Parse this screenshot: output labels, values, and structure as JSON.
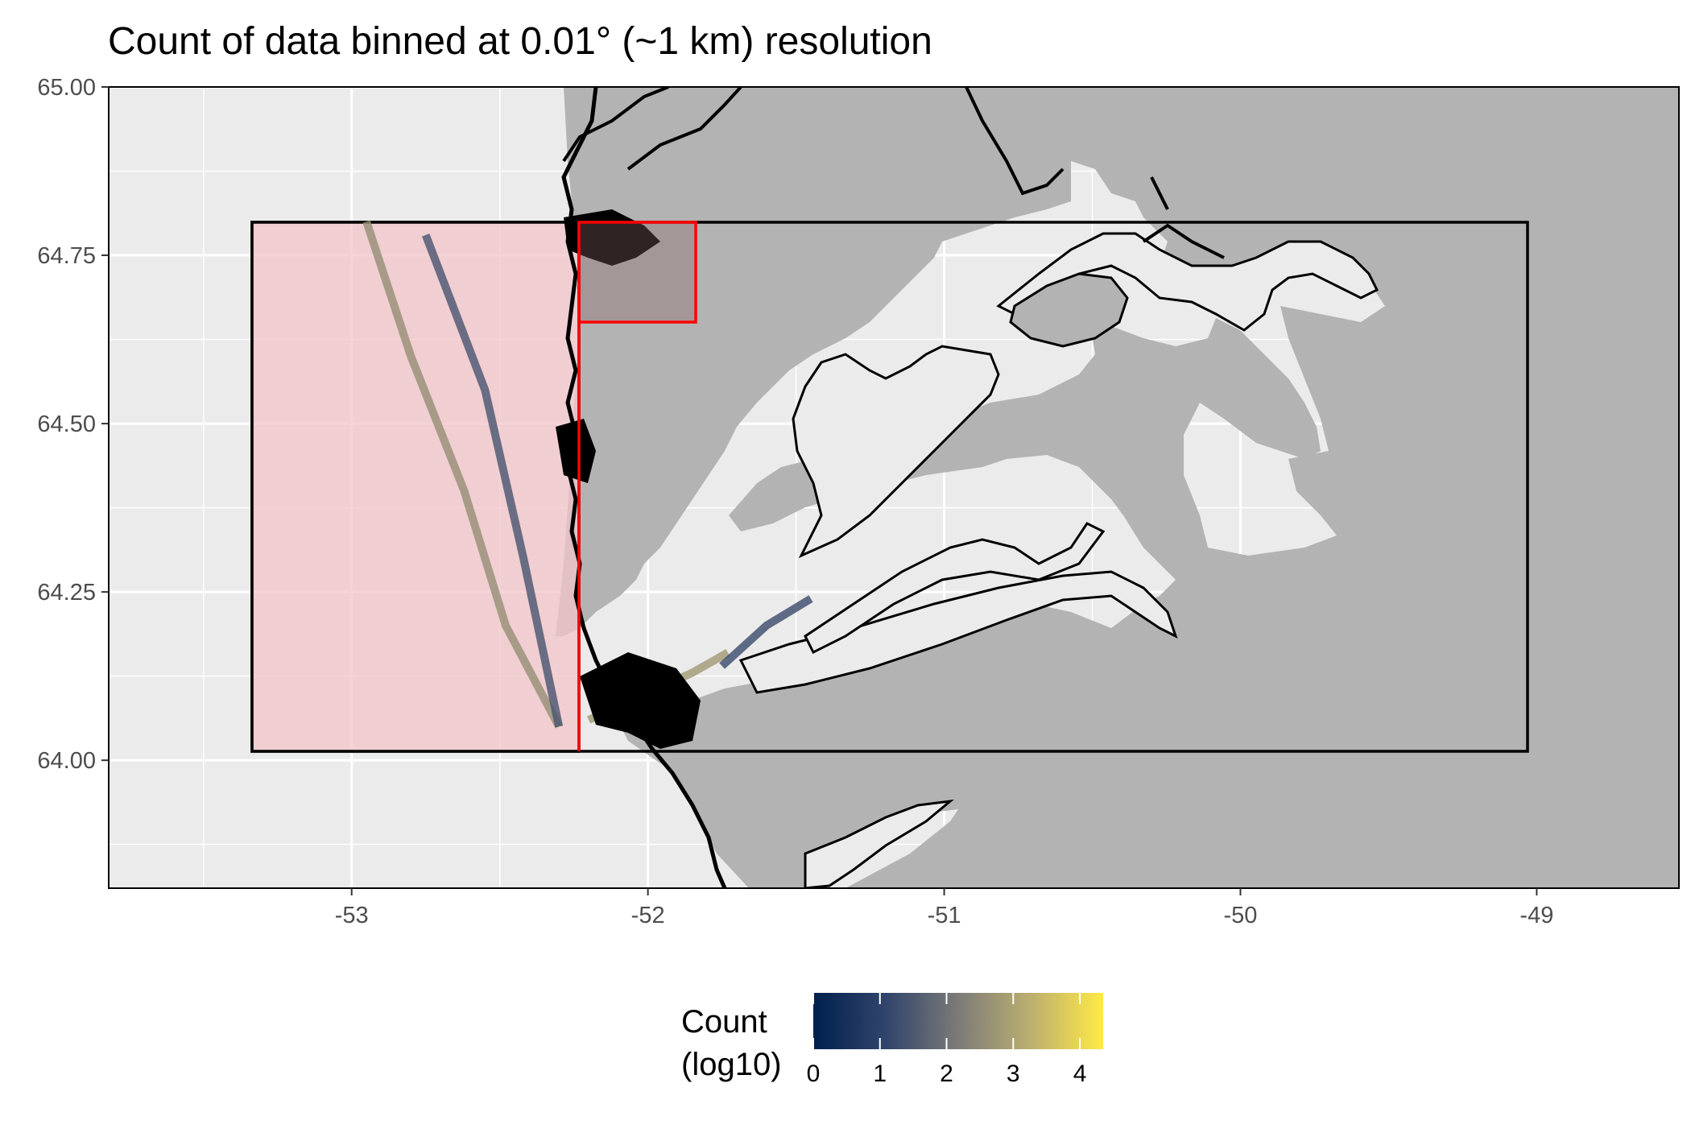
{
  "title": "Count of data binned at 0.01° (~1 km) resolution",
  "chart_data": {
    "type": "heatmap",
    "title": "Count of data binned at 0.01° (~1 km) resolution",
    "xlabel": "",
    "ylabel": "",
    "xlim": [
      -53.82,
      -48.52
    ],
    "ylim": [
      63.81,
      65.0
    ],
    "x_ticks": [
      -53,
      -52,
      -51,
      -50,
      -49
    ],
    "x_tick_labels": [
      "-53",
      "-52",
      "-51",
      "-50",
      "-49"
    ],
    "y_ticks": [
      64.0,
      64.25,
      64.5,
      64.75,
      65.0
    ],
    "y_tick_labels": [
      "64.00",
      "64.25",
      "64.50",
      "64.75",
      "65.00"
    ],
    "grid": true,
    "colors": {
      "panel_background": "#ebebeb",
      "land": "#b3b3b3",
      "grid": "#ffffff",
      "offshore_box_fill": "#f2c4c8",
      "inner_box_outline": "#ff0000",
      "outer_box_outline": "#000000",
      "colormap_low": "#00204d",
      "colormap_mid": "#7c7b78",
      "colormap_high": "#ffea46"
    },
    "regions": [
      {
        "kind": "outer-study-box",
        "lon": [
          -53.32,
          -48.94
        ],
        "lat": [
          64.01,
          64.8
        ],
        "outline": "#000000"
      },
      {
        "kind": "offshore-box",
        "lon": [
          -53.32,
          -52.2
        ],
        "lat": [
          64.01,
          64.8
        ],
        "fill": "#f2c4c8",
        "outline": "#000000"
      },
      {
        "kind": "coastal-divider",
        "lon": [
          -52.2,
          -52.2
        ],
        "lat": [
          64.01,
          64.8
        ],
        "outline": "#ff0000"
      },
      {
        "kind": "north-coastal-box",
        "lon": [
          -52.2,
          -51.8
        ],
        "lat": [
          64.65,
          64.8
        ],
        "outline": "#ff0000"
      }
    ],
    "tracks": [
      {
        "name": "main-shipping-lane",
        "count_log10": 2.6,
        "points": [
          [
            -52.95,
            64.8
          ],
          [
            -52.8,
            64.6
          ],
          [
            -52.62,
            64.4
          ],
          [
            -52.48,
            64.2
          ],
          [
            -52.3,
            64.05
          ]
        ]
      },
      {
        "name": "parallel-lane",
        "count_log10": 1.4,
        "points": [
          [
            -52.75,
            64.78
          ],
          [
            -52.55,
            64.55
          ],
          [
            -52.42,
            64.3
          ],
          [
            -52.3,
            64.05
          ]
        ]
      },
      {
        "name": "fjord-entry-track",
        "count_log10": 2.8,
        "points": [
          [
            -52.2,
            64.06
          ],
          [
            -52.0,
            64.1
          ],
          [
            -51.85,
            64.13
          ],
          [
            -51.73,
            64.16
          ]
        ]
      },
      {
        "name": "inner-fjord-track",
        "count_log10": 1.2,
        "points": [
          [
            -51.75,
            64.14
          ],
          [
            -51.6,
            64.2
          ],
          [
            -51.45,
            64.24
          ]
        ]
      }
    ],
    "legend": {
      "title": "Count\n(log10)",
      "ticks": [
        0,
        1,
        2,
        3,
        4
      ],
      "range": [
        0,
        4.35
      ],
      "position": "bottom"
    }
  },
  "legend": {
    "title_line1": "Count",
    "title_line2": "(log10)",
    "ticks": [
      "0",
      "1",
      "2",
      "3",
      "4"
    ]
  }
}
